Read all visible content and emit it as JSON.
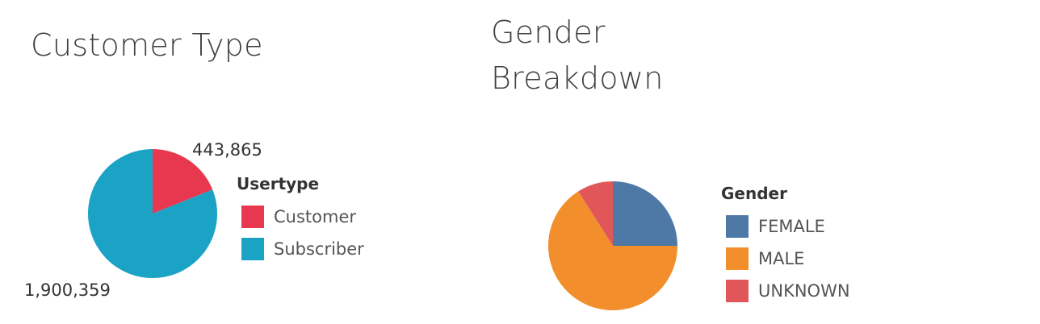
{
  "chart_data": [
    {
      "type": "pie",
      "title": "Customer Type",
      "legend_title": "Usertype",
      "legend_position": "right",
      "slices": [
        {
          "label": "Customer",
          "value": 443865,
          "display": "443,865",
          "color": "#E8384F"
        },
        {
          "label": "Subscriber",
          "value": 1900359,
          "display": "1,900,359",
          "color": "#1BA3C6"
        }
      ]
    },
    {
      "type": "pie",
      "title": "Gender Breakdown",
      "legend_title": "Gender",
      "legend_position": "right",
      "slices": [
        {
          "label": "FEMALE",
          "value": 0.25,
          "color": "#4E79A7"
        },
        {
          "label": "MALE",
          "value": 0.66,
          "color": "#F28E2B"
        },
        {
          "label": "UNKNOWN",
          "value": 0.09,
          "color": "#E15759"
        }
      ]
    }
  ]
}
